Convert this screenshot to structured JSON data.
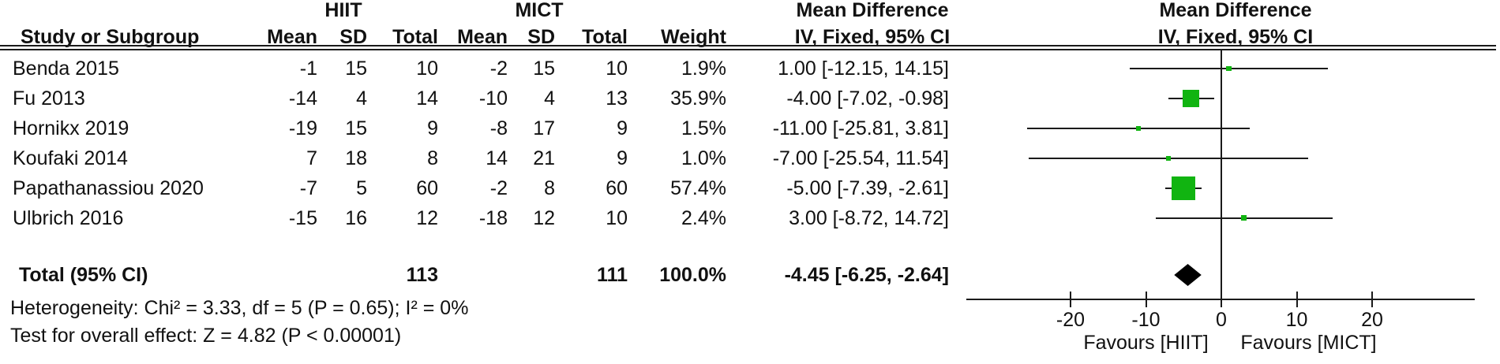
{
  "header": {
    "group1": "HIIT",
    "group2": "MICT",
    "study": "Study or Subgroup",
    "mean": "Mean",
    "sd": "SD",
    "total": "Total",
    "weight": "Weight",
    "md_title": "Mean Difference",
    "md_subtitle": "IV, Fixed, 95% CI"
  },
  "rows": [
    {
      "study": "Benda 2015",
      "m1": "-1",
      "sd1": "15",
      "t1": "10",
      "m2": "-2",
      "sd2": "15",
      "t2": "10",
      "w": "1.9%",
      "ci": "1.00 [-12.15, 14.15]"
    },
    {
      "study": "Fu 2013",
      "m1": "-14",
      "sd1": "4",
      "t1": "14",
      "m2": "-10",
      "sd2": "4",
      "t2": "13",
      "w": "35.9%",
      "ci": "-4.00 [-7.02, -0.98]"
    },
    {
      "study": "Hornikx 2019",
      "m1": "-19",
      "sd1": "15",
      "t1": "9",
      "m2": "-8",
      "sd2": "17",
      "t2": "9",
      "w": "1.5%",
      "ci": "-11.00 [-25.81, 3.81]"
    },
    {
      "study": "Koufaki 2014",
      "m1": "7",
      "sd1": "18",
      "t1": "8",
      "m2": "14",
      "sd2": "21",
      "t2": "9",
      "w": "1.0%",
      "ci": "-7.00 [-25.54, 11.54]"
    },
    {
      "study": "Papathanassiou 2020",
      "m1": "-7",
      "sd1": "5",
      "t1": "60",
      "m2": "-2",
      "sd2": "8",
      "t2": "60",
      "w": "57.4%",
      "ci": "-5.00 [-7.39, -2.61]"
    },
    {
      "study": "Ulbrich 2016",
      "m1": "-15",
      "sd1": "16",
      "t1": "12",
      "m2": "-18",
      "sd2": "12",
      "t2": "10",
      "w": "2.4%",
      "ci": "3.00 [-8.72, 14.72]"
    }
  ],
  "total_row": {
    "label": "Total (95% CI)",
    "t1": "113",
    "t2": "111",
    "w": "100.0%",
    "ci": "-4.45 [-6.25, -2.64]"
  },
  "footnotes": {
    "heterogeneity": "Heterogeneity: Chi² = 3.33, df = 5 (P = 0.65); I² = 0%",
    "overall_effect": "Test for overall effect: Z = 4.82 (P < 0.00001)"
  },
  "chart_data": {
    "type": "forest",
    "title": "Mean Difference",
    "subtitle": "IV, Fixed, 95% CI",
    "effect_measure": "Mean Difference, IV, Fixed, 95% CI",
    "xlabel_left": "Favours [HIIT]",
    "xlabel_right": "Favours [MICT]",
    "axis": {
      "ticks": [
        -20,
        -10,
        0,
        10,
        20
      ],
      "range": [
        -33.8,
        33.6
      ],
      "zero_line": 0
    },
    "studies": [
      {
        "name": "Benda 2015",
        "md": 1.0,
        "lo": -12.15,
        "hi": 14.15,
        "weight_pct": 1.9
      },
      {
        "name": "Fu 2013",
        "md": -4.0,
        "lo": -7.02,
        "hi": -0.98,
        "weight_pct": 35.9
      },
      {
        "name": "Hornikx 2019",
        "md": -11.0,
        "lo": -25.81,
        "hi": 3.81,
        "weight_pct": 1.5
      },
      {
        "name": "Koufaki 2014",
        "md": -7.0,
        "lo": -25.54,
        "hi": 11.54,
        "weight_pct": 1.0
      },
      {
        "name": "Papathanassiou 2020",
        "md": -5.0,
        "lo": -7.39,
        "hi": -2.61,
        "weight_pct": 57.4
      },
      {
        "name": "Ulbrich 2016",
        "md": 3.0,
        "lo": -8.72,
        "hi": 14.72,
        "weight_pct": 2.4
      }
    ],
    "total": {
      "name": "Total (95% CI)",
      "md": -4.45,
      "lo": -6.25,
      "hi": -2.64,
      "weight_pct": 100.0
    },
    "heterogeneity": {
      "chi2": 3.33,
      "df": 5,
      "p": 0.65,
      "i2_pct": 0
    },
    "overall_effect": {
      "z": 4.82,
      "p": "< 0.00001"
    },
    "marker_color": "#11b411",
    "diamond_color": "#000000",
    "line_color": "#1a1a1a"
  }
}
